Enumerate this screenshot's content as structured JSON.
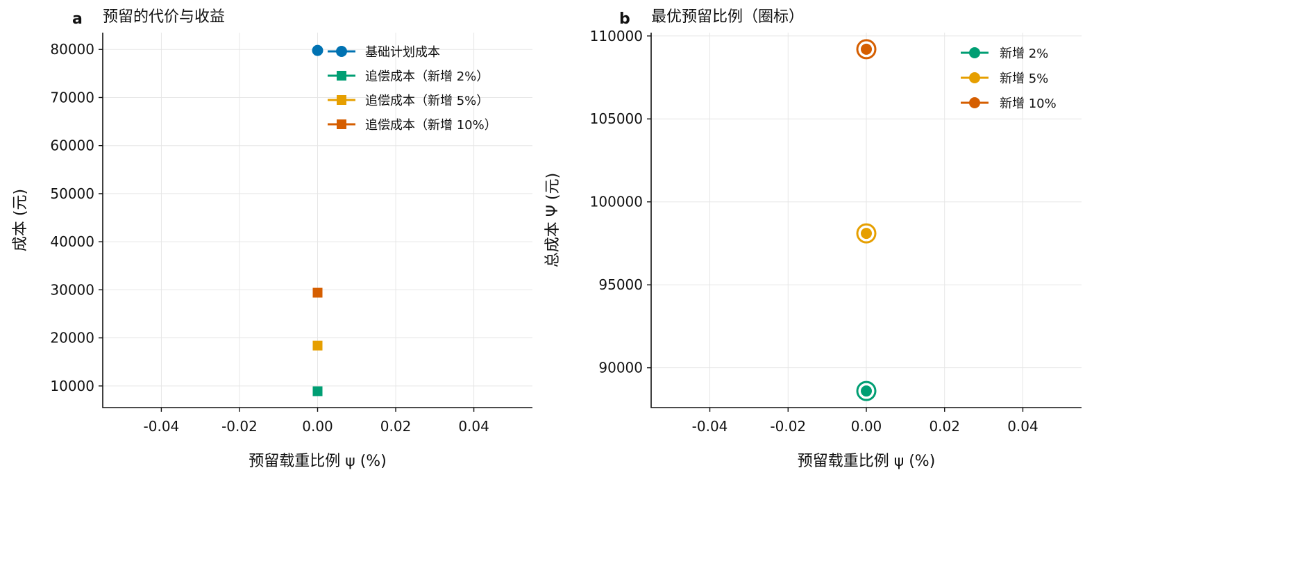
{
  "chart_data": [
    {
      "panel_letter": "a",
      "type": "scatter",
      "title": "预留的代价与收益",
      "xlabel": "预留载重比例 ψ (%)",
      "ylabel": "成本 (元)",
      "xlim": [
        -0.055,
        0.055
      ],
      "ylim": [
        5500,
        83500
      ],
      "xticks": [
        -0.04,
        -0.02,
        0.0,
        0.02,
        0.04
      ],
      "xtick_labels": [
        "-0.04",
        "-0.02",
        "0.00",
        "0.02",
        "0.04"
      ],
      "yticks": [
        10000,
        20000,
        30000,
        40000,
        50000,
        60000,
        70000,
        80000
      ],
      "ytick_labels": [
        "10000",
        "20000",
        "30000",
        "40000",
        "50000",
        "60000",
        "70000",
        "80000"
      ],
      "grid": true,
      "legend_position": "top-right",
      "series": [
        {
          "name": "基础计划成本",
          "marker": "circle",
          "color": "#0072B2",
          "points": [
            {
              "x": 0.0,
              "y": 79800
            }
          ]
        },
        {
          "name": "追偿成本（新增 2%）",
          "marker": "square",
          "color": "#009E73",
          "points": [
            {
              "x": 0.0,
              "y": 8900
            }
          ]
        },
        {
          "name": "追偿成本（新增 5%）",
          "marker": "square",
          "color": "#E69F00",
          "points": [
            {
              "x": 0.0,
              "y": 18400
            }
          ]
        },
        {
          "name": "追偿成本（新增 10%）",
          "marker": "square",
          "color": "#D55E00",
          "points": [
            {
              "x": 0.0,
              "y": 29400
            }
          ]
        }
      ]
    },
    {
      "panel_letter": "b",
      "type": "scatter",
      "title": "最优预留比例（圈标）",
      "xlabel": "预留载重比例 ψ (%)",
      "ylabel": "总成本 Ψ (元)",
      "xlim": [
        -0.055,
        0.055
      ],
      "ylim": [
        87600,
        110200
      ],
      "xticks": [
        -0.04,
        -0.02,
        0.0,
        0.02,
        0.04
      ],
      "xtick_labels": [
        "-0.04",
        "-0.02",
        "0.00",
        "0.02",
        "0.04"
      ],
      "yticks": [
        90000,
        95000,
        100000,
        105000,
        110000
      ],
      "ytick_labels": [
        "90000",
        "95000",
        "100000",
        "105000",
        "110000"
      ],
      "grid": true,
      "legend_position": "top-right",
      "series": [
        {
          "name": "新增 2%",
          "marker": "circle",
          "color": "#009E73",
          "highlight_ring": true,
          "points": [
            {
              "x": 0.0,
              "y": 88600
            }
          ]
        },
        {
          "name": "新增 5%",
          "marker": "circle",
          "color": "#E69F00",
          "highlight_ring": true,
          "points": [
            {
              "x": 0.0,
              "y": 98100
            }
          ]
        },
        {
          "name": "新增 10%",
          "marker": "circle",
          "color": "#D55E00",
          "highlight_ring": true,
          "points": [
            {
              "x": 0.0,
              "y": 109200
            }
          ]
        }
      ]
    }
  ]
}
